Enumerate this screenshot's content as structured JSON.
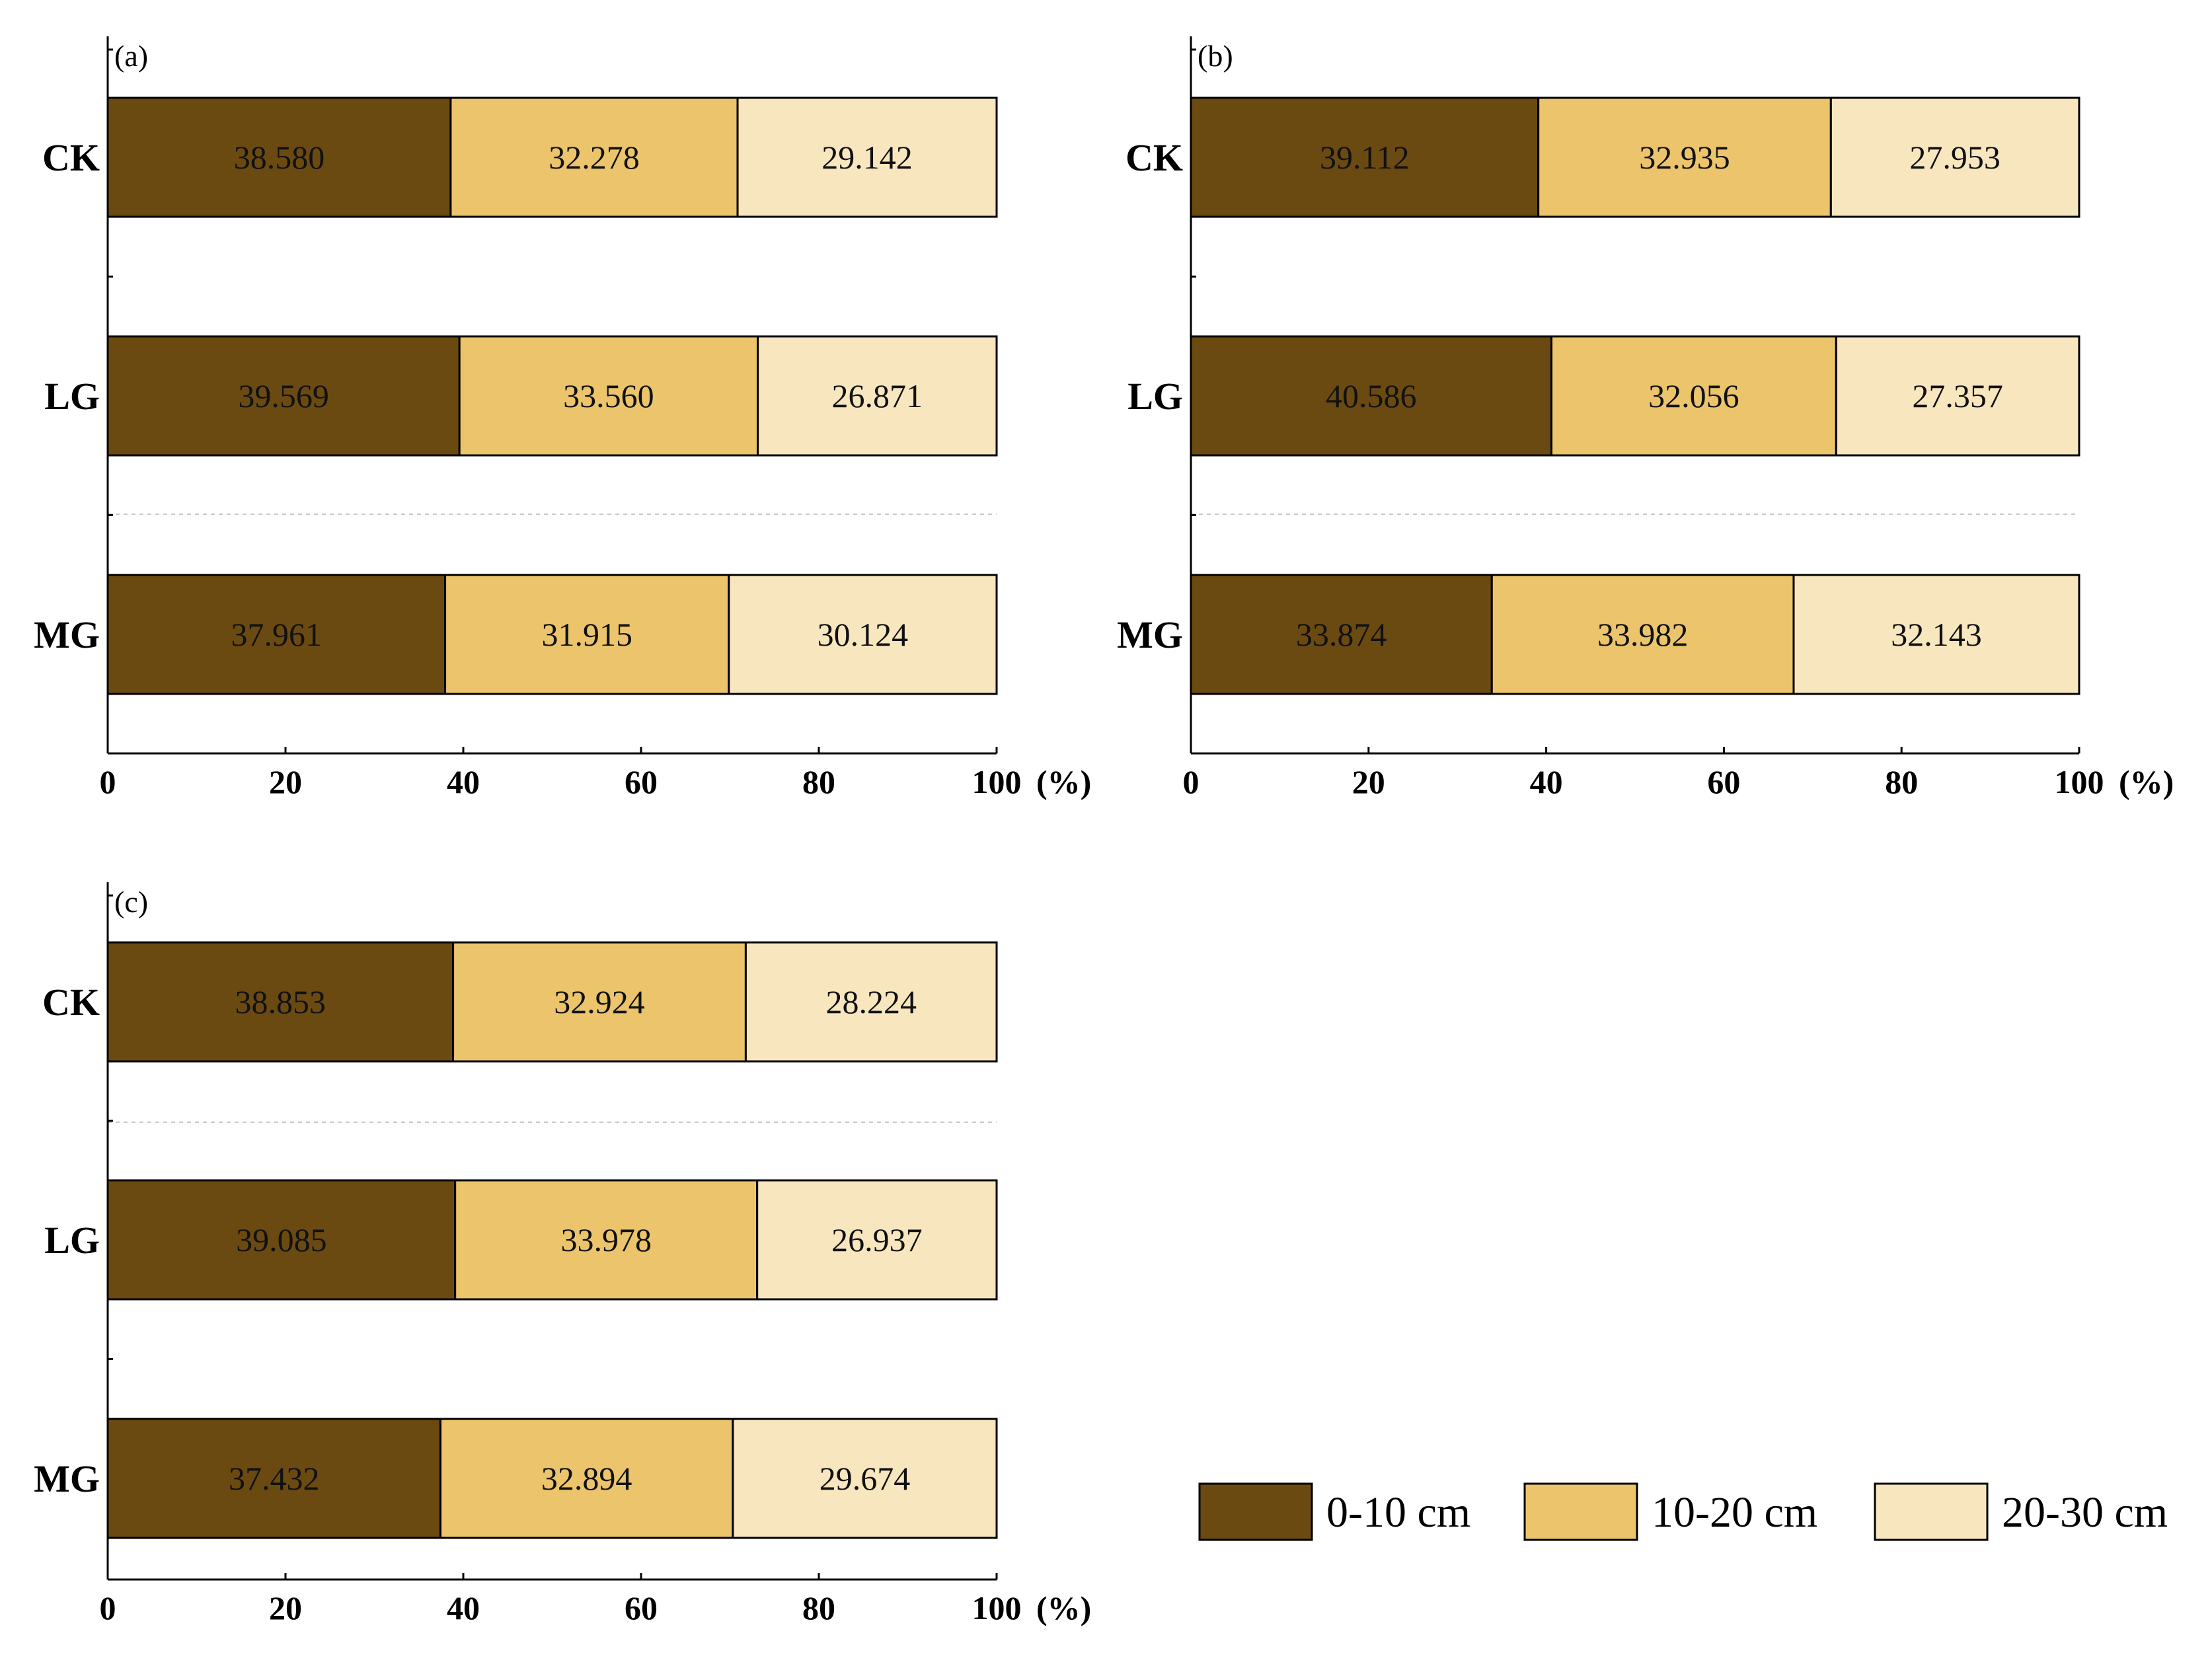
{
  "chart_data": [
    {
      "type": "bar",
      "orientation": "horizontal",
      "stacked": true,
      "panel": "(a)",
      "categories": [
        "CK",
        "LG",
        "MG"
      ],
      "series": [
        {
          "name": "0-10 cm",
          "values": [
            38.58,
            39.569,
            37.961
          ],
          "labels": [
            "38.580",
            "39.569",
            "37.961"
          ]
        },
        {
          "name": "10-20 cm",
          "values": [
            32.278,
            33.56,
            31.915
          ],
          "labels": [
            "32.278",
            "33.560",
            "31.915"
          ]
        },
        {
          "name": "20-30 cm",
          "values": [
            29.142,
            26.871,
            30.124
          ],
          "labels": [
            "29.142",
            "26.871",
            "30.124"
          ]
        }
      ],
      "xlim": [
        0,
        100
      ],
      "xticks": [
        "0",
        "20",
        "40",
        "60",
        "80",
        "100"
      ],
      "xunit": "(%)"
    },
    {
      "type": "bar",
      "orientation": "horizontal",
      "stacked": true,
      "panel": "(b)",
      "categories": [
        "CK",
        "LG",
        "MG"
      ],
      "series": [
        {
          "name": "0-10 cm",
          "values": [
            39.112,
            40.586,
            33.874
          ],
          "labels": [
            "39.112",
            "40.586",
            "33.874"
          ]
        },
        {
          "name": "10-20 cm",
          "values": [
            32.935,
            32.056,
            33.982
          ],
          "labels": [
            "32.935",
            "32.056",
            "33.982"
          ]
        },
        {
          "name": "20-30 cm",
          "values": [
            27.953,
            27.357,
            32.143
          ],
          "labels": [
            "27.953",
            "27.357",
            "32.143"
          ]
        }
      ],
      "xlim": [
        0,
        100
      ],
      "xticks": [
        "0",
        "20",
        "40",
        "60",
        "80",
        "100"
      ],
      "xunit": "(%)"
    },
    {
      "type": "bar",
      "orientation": "horizontal",
      "stacked": true,
      "panel": "(c)",
      "categories": [
        "CK",
        "LG",
        "MG"
      ],
      "series": [
        {
          "name": "0-10 cm",
          "values": [
            38.853,
            39.085,
            37.432
          ],
          "labels": [
            "38.853",
            "39.085",
            "37.432"
          ]
        },
        {
          "name": "10-20 cm",
          "values": [
            32.924,
            33.978,
            32.894
          ],
          "labels": [
            "32.924",
            "33.978",
            "32.894"
          ]
        },
        {
          "name": "20-30 cm",
          "values": [
            28.224,
            26.937,
            29.674
          ],
          "labels": [
            "28.224",
            "26.937",
            "29.674"
          ]
        }
      ],
      "xlim": [
        0,
        100
      ],
      "xticks": [
        "0",
        "20",
        "40",
        "60",
        "80",
        "100"
      ],
      "xunit": "(%)"
    }
  ],
  "legend": {
    "placement": "bottom-right",
    "items": [
      {
        "label": "0-10 cm",
        "color": "#6b4a12"
      },
      {
        "label": "10-20 cm",
        "color": "#ebc46c"
      },
      {
        "label": "20-30 cm",
        "color": "#f8e6bf"
      }
    ]
  }
}
